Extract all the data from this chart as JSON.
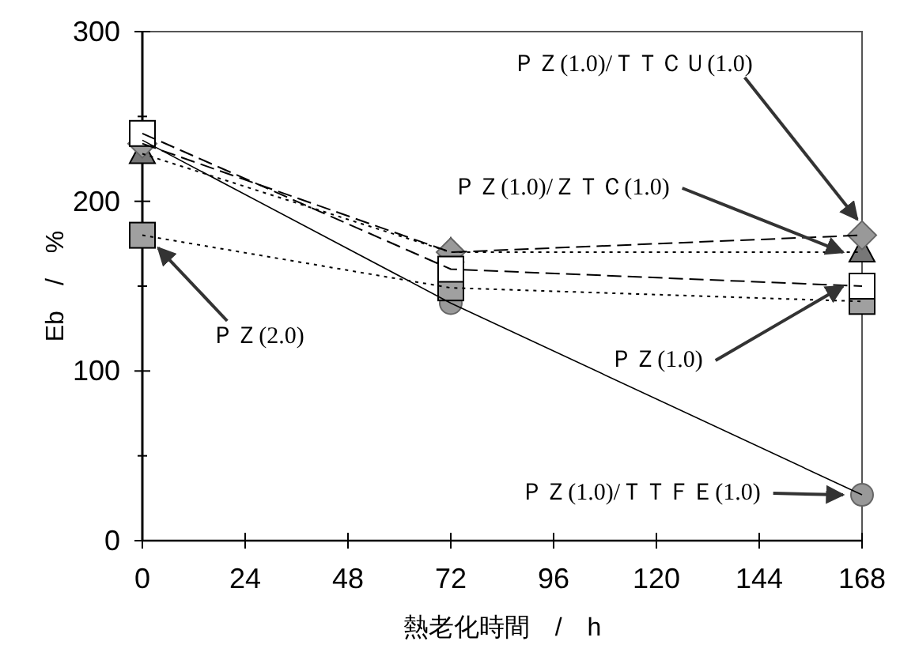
{
  "chart_data": {
    "type": "line",
    "xlabel": "熱老化時間　/　h",
    "ylabel": "Eb　/　%",
    "x": [
      0,
      72,
      168
    ],
    "xlim": [
      0,
      168
    ],
    "xticks": [
      0,
      24,
      48,
      72,
      96,
      120,
      144,
      168
    ],
    "ylim": [
      0,
      300
    ],
    "yticks": [
      0,
      100,
      200,
      300
    ],
    "grid": false,
    "series": [
      {
        "name": "ＰＺ(1.0)/ＴＴＣＵ(1.0)",
        "color": "#999999",
        "values": [
          234,
          170,
          180
        ],
        "marker": "diamond",
        "line_style": "dashed"
      },
      {
        "name": "ＰＺ(1.0)/ＺＴＣ(1.0)",
        "color": "#777777",
        "values": [
          228,
          170,
          170
        ],
        "marker": "triangle",
        "line_style": "dotted"
      },
      {
        "name": "ＰＺ(1.0)",
        "color": "#ffffff",
        "values": [
          240,
          160,
          150
        ],
        "marker": "square",
        "line_style": "dashed"
      },
      {
        "name": "ＰＺ(2.0)",
        "color": "#a0a0a0",
        "values": [
          180,
          149,
          141
        ],
        "marker": "square",
        "line_style": "dotted"
      },
      {
        "name": "ＰＺ(1.0)/ＴＴＦＥ(1.0)",
        "color": "#999999",
        "values": [
          236,
          140,
          27
        ],
        "marker": "circle",
        "line_style": "solid"
      }
    ]
  }
}
